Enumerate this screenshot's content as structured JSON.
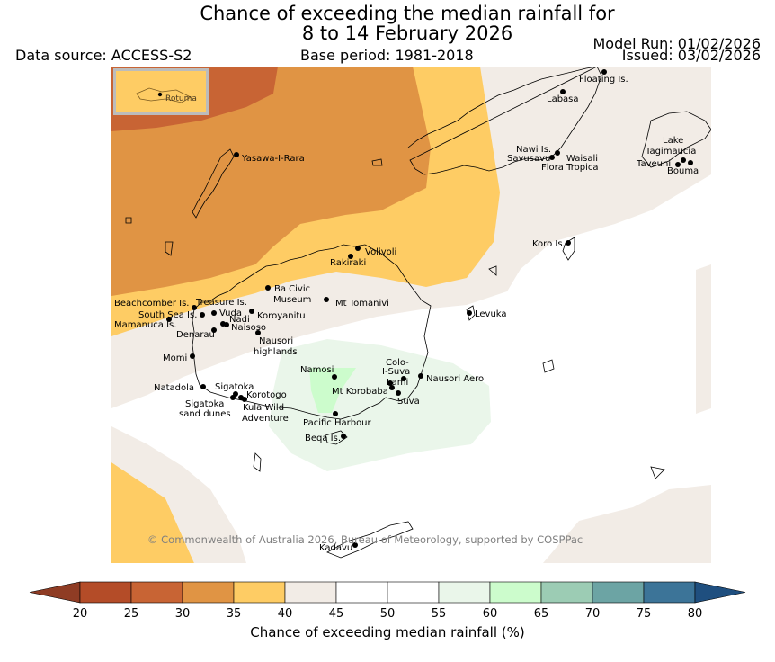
{
  "header": {
    "title_line1": "Chance of exceeding the median rainfall for",
    "title_line2": "8 to 14 February 2026",
    "data_source": "Data source: ACCESS-S2",
    "base_period": "Base period: 1981-2018",
    "model_run": "Model Run: 01/02/2026",
    "issued": "Issued: 03/02/2026"
  },
  "map": {
    "inset_label": "Rotuma",
    "copyright": "© Commonwealth of Australia 2026, Bureau of Meteorology, supported by COSPPac",
    "places": [
      {
        "name": "Floating Is."
      },
      {
        "name": "Labasa"
      },
      {
        "name": "Nawi Is."
      },
      {
        "name": "Savusavu"
      },
      {
        "name": "Waisali"
      },
      {
        "name": "Flora Tropica"
      },
      {
        "name": "Lake"
      },
      {
        "name": "Tagimaucia"
      },
      {
        "name": "Taveuni"
      },
      {
        "name": "Bouma"
      },
      {
        "name": "Yasawa-I-Rara"
      },
      {
        "name": "Volivoli"
      },
      {
        "name": "Rakiraki"
      },
      {
        "name": "Koro Is."
      },
      {
        "name": "Ba Civic"
      },
      {
        "name": "Museum"
      },
      {
        "name": "Mt Tomanivi"
      },
      {
        "name": "Beachcomber Is."
      },
      {
        "name": "Treasure Is."
      },
      {
        "name": "South Sea Is."
      },
      {
        "name": "Vuda"
      },
      {
        "name": "Koroyanitu"
      },
      {
        "name": "Nadi"
      },
      {
        "name": "Mamanuca Is."
      },
      {
        "name": "Naisoso"
      },
      {
        "name": "Denarau"
      },
      {
        "name": "Nausori"
      },
      {
        "name": "highlands"
      },
      {
        "name": "Levuka"
      },
      {
        "name": "Momi"
      },
      {
        "name": "Namosi"
      },
      {
        "name": "Colo-"
      },
      {
        "name": "I-Suva"
      },
      {
        "name": "Lami"
      },
      {
        "name": "Nausori Aero"
      },
      {
        "name": "Mt Korobaba"
      },
      {
        "name": "Suva"
      },
      {
        "name": "Natadola"
      },
      {
        "name": "Sigatoka"
      },
      {
        "name": "Korotogo"
      },
      {
        "name": "Sigatoka"
      },
      {
        "name": "sand dunes"
      },
      {
        "name": "Kula Wild"
      },
      {
        "name": "Adventure"
      },
      {
        "name": "Pacific Harbour"
      },
      {
        "name": "Beqa Is."
      },
      {
        "name": "Kadavu"
      }
    ]
  },
  "colorbar": {
    "title": "Chance of exceeding median rainfall (%)",
    "ticks": [
      "20",
      "25",
      "30",
      "35",
      "40",
      "45",
      "50",
      "55",
      "60",
      "65",
      "70",
      "75",
      "80"
    ],
    "colors": [
      "#b44c28",
      "#c86434",
      "#e09444",
      "#fecc64",
      "#f2ece6",
      "#ffffff",
      "#ffffff",
      "#eaf6ea",
      "#ccfccc",
      "#9cccb4",
      "#6ca4a4",
      "#3c7498"
    ],
    "under_color": "#8f3c24",
    "over_color": "#1f4f7f"
  }
}
